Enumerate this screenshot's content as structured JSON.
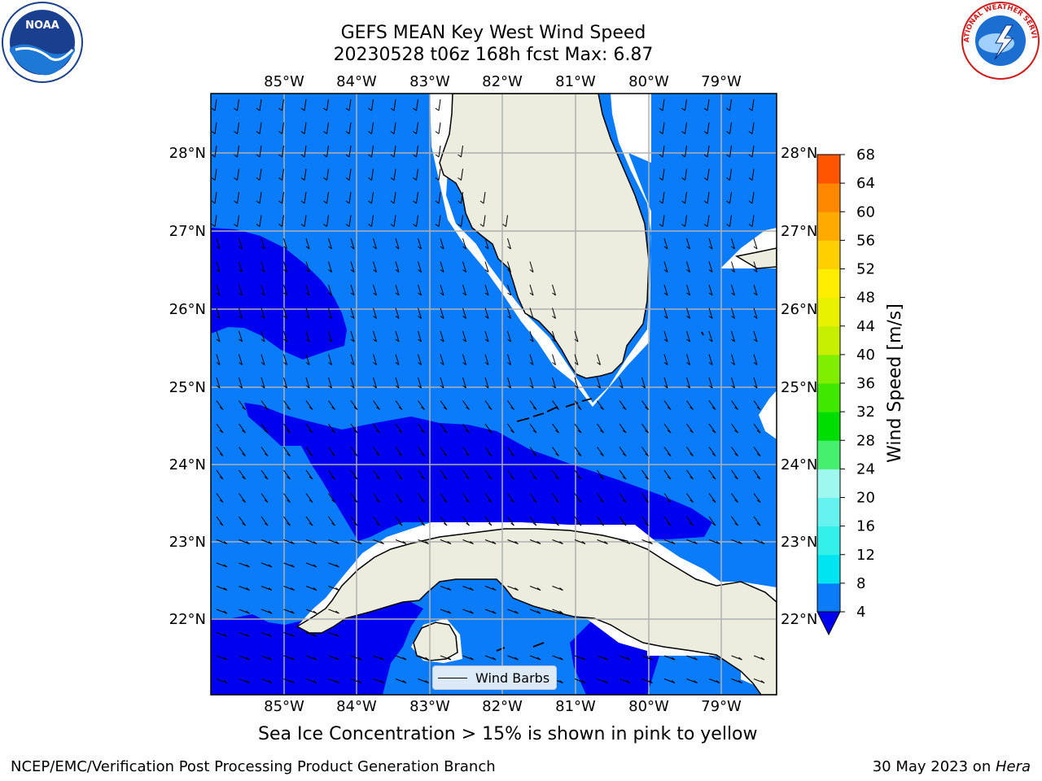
{
  "title": {
    "line1": "GEFS MEAN Key West Wind Speed",
    "line2": "20230528 t06z 168h fcst   Max: 6.87"
  },
  "map": {
    "lon_labels": [
      "85°W",
      "84°W",
      "83°W",
      "82°W",
      "81°W",
      "80°W",
      "79°W"
    ],
    "lat_labels": [
      "28°N",
      "27°N",
      "26°N",
      "25°N",
      "24°N",
      "23°N",
      "22°N"
    ],
    "legend_label": "Wind Barbs",
    "colors": {
      "ocean_light": "#0a7cfa",
      "ocean_dark": "#0000f0",
      "land": "#ededdf",
      "grid": "#b0b0b0"
    }
  },
  "colorbar": {
    "label": "Wind Speed [m/s]",
    "ticks": [
      "4",
      "8",
      "12",
      "16",
      "20",
      "24",
      "28",
      "32",
      "36",
      "40",
      "44",
      "48",
      "52",
      "56",
      "60",
      "64",
      "68"
    ],
    "colors": [
      "#0a7cfa",
      "#00e3f0",
      "#33f0ea",
      "#66f3f0",
      "#9ff8f0",
      "#46ef6e",
      "#00dd00",
      "#40e800",
      "#80ee00",
      "#c6f000",
      "#e8f200",
      "#ffee00",
      "#ffd000",
      "#ffaa00",
      "#ff8800",
      "#ff5500",
      "#ff2200",
      "#ff0000"
    ],
    "extend_color": "#0000f0"
  },
  "caption": "Sea Ice Concentration > 15% is shown in pink to yellow",
  "footer": {
    "left": "NCEP/EMC/Verification Post Processing Product Generation Branch",
    "right_date": "30 May 2023 on ",
    "right_host": "Hera"
  },
  "logos": {
    "noaa_text": "NOAA",
    "nws_text": "NATIONAL WEATHER SERVICE"
  }
}
